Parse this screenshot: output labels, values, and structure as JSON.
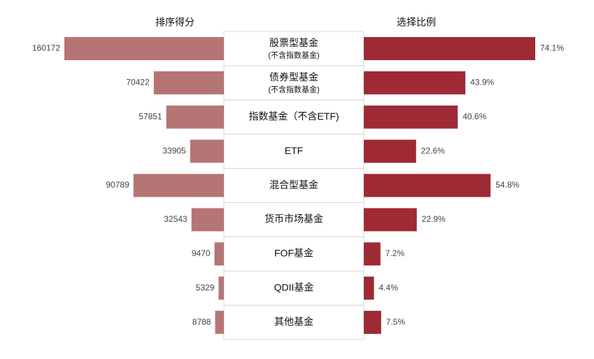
{
  "chart_data": {
    "type": "butterfly",
    "categories": [
      "股票型基金",
      "债券型基金",
      "指数基金（不含ETF)",
      "ETF",
      "混合型基金",
      "货币市场基金",
      "FOF基金",
      "QDII基金",
      "其他基金"
    ],
    "category_subtitles": [
      "(不含指数基金)",
      "(不含指数基金)",
      null,
      null,
      null,
      null,
      null,
      null,
      null
    ],
    "series": [
      {
        "name": "排序得分",
        "color": "#b57575",
        "values": [
          160172,
          70422,
          57851,
          33905,
          90789,
          32543,
          9470,
          5329,
          8788
        ]
      },
      {
        "name": "选择比例",
        "color": "#9e2a36",
        "values": [
          74.1,
          43.9,
          40.6,
          22.6,
          54.8,
          22.9,
          7.2,
          4.4,
          7.5
        ],
        "value_labels": [
          "74.1%",
          "43.9%",
          "40.6%",
          "22.6%",
          "54.8%",
          "22.9%",
          "7.2%",
          "4.4%",
          "7.5%"
        ]
      }
    ]
  }
}
